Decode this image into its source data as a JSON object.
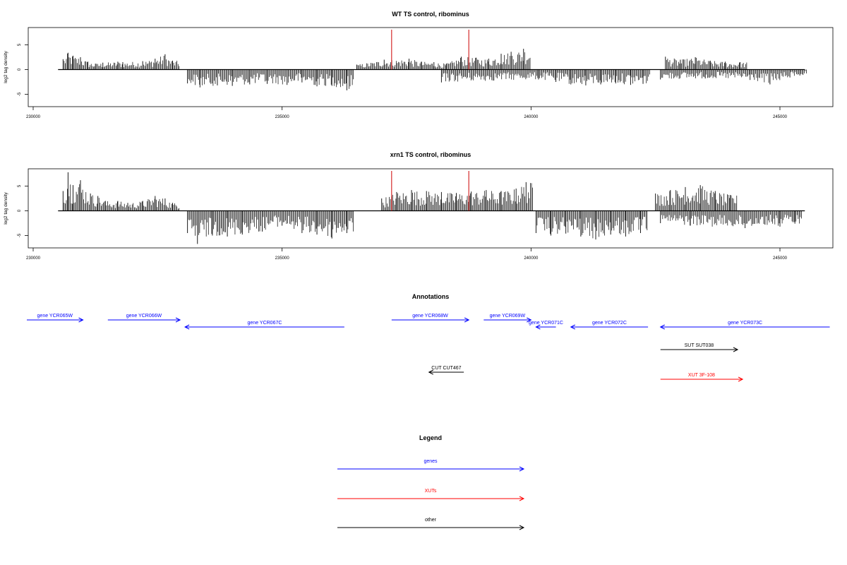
{
  "chart_data": [
    {
      "type": "bar",
      "title": "WT TS control, ribominus",
      "ylabel": "log2 tag density",
      "xlim": [
        230000,
        245800
      ],
      "ylim": [
        -7.5,
        8.5
      ],
      "x_ticks": [
        230000,
        235000,
        240000,
        245000
      ],
      "x_tick_labels": [
        "230000",
        "235000",
        "240000",
        "245000"
      ],
      "y_ticks": [
        -5,
        0,
        5
      ],
      "y_tick_labels": [
        "-5",
        "0",
        "5"
      ],
      "baseline": {
        "from": 230500,
        "to": 245500
      },
      "markers": [
        237200,
        238750
      ],
      "colors": {
        "data": "#000000",
        "markers": "#cc0000"
      },
      "series": [
        {
          "x": [
            230600,
            230700,
            230800,
            230950,
            231100,
            231250,
            231400,
            231700,
            231800,
            232200,
            232450,
            232650,
            232800
          ],
          "values": [
            2.1,
            3.4,
            2.8,
            2.5,
            1.6,
            1.2,
            1.4,
            1.6,
            1.5,
            1.7,
            2.2,
            3.1,
            1.8
          ]
        },
        {
          "x": [
            233100,
            233350,
            233700,
            234000,
            234350,
            234700,
            235100,
            235400,
            235700,
            236000,
            236300
          ],
          "values": [
            -2.8,
            -3.6,
            -3.2,
            -3.3,
            -3.0,
            -2.9,
            -3.1,
            -2.6,
            -3.4,
            -3.3,
            -4.2
          ]
        },
        {
          "x": [
            236500,
            237050,
            237550,
            237800,
            238050,
            238300,
            238600,
            238900,
            239150,
            239400,
            239600,
            239850
          ],
          "values": [
            1.0,
            2.0,
            2.2,
            1.6,
            1.5,
            1.2,
            2.6,
            2.4,
            2.2,
            3.2,
            3.6,
            4.2
          ]
        },
        {
          "x": [
            238200,
            240150,
            240500,
            240800,
            241100,
            241400,
            241700,
            242000,
            242250
          ],
          "values": [
            -2.6,
            -2.0,
            -2.5,
            -3.0,
            -3.2,
            -3.0,
            -2.8,
            -3.1,
            -2.9
          ]
        },
        {
          "x": [
            242700,
            243000,
            243300,
            243600,
            243900,
            244200
          ],
          "values": [
            2.6,
            2.0,
            2.5,
            1.8,
            1.6,
            1.5
          ]
        },
        {
          "x": [
            242600,
            243500,
            244400,
            244800,
            245200,
            245400
          ],
          "values": [
            -2.0,
            -1.8,
            -2.1,
            -3.0,
            -1.6,
            -1.2
          ]
        }
      ]
    },
    {
      "type": "bar",
      "title": "xrn1 TS control, ribominus",
      "ylabel": "log2 tag density",
      "xlim": [
        230000,
        245800
      ],
      "ylim": [
        -7.5,
        8.5
      ],
      "x_ticks": [
        230000,
        235000,
        240000,
        245000
      ],
      "x_tick_labels": [
        "230000",
        "235000",
        "240000",
        "245000"
      ],
      "y_ticks": [
        -5,
        0,
        5
      ],
      "y_tick_labels": [
        "-5",
        "0",
        "5"
      ],
      "baseline": {
        "from": 230500,
        "to": 245500
      },
      "markers": [
        237200,
        238750
      ],
      "colors": {
        "data": "#000000",
        "markers": "#cc0000"
      },
      "series": [
        {
          "x": [
            230600,
            230700,
            230800,
            230950,
            231150,
            231300,
            231450,
            231700,
            231900,
            232200,
            232450,
            232650,
            232800
          ],
          "values": [
            4.0,
            7.8,
            5.2,
            6.2,
            3.5,
            3.0,
            2.0,
            2.0,
            1.6,
            2.0,
            3.0,
            2.5,
            1.6
          ]
        },
        {
          "x": [
            233100,
            233300,
            233600,
            233900,
            234200,
            234600,
            235000,
            235400,
            235700,
            236000,
            236300
          ],
          "values": [
            -4.5,
            -6.7,
            -5.0,
            -5.2,
            -4.8,
            -4.2,
            -3.0,
            -4.5,
            -4.8,
            -5.6,
            -4.5
          ]
        },
        {
          "x": [
            237000,
            237300,
            237600,
            237900,
            238200,
            238500,
            238800,
            239100,
            239400,
            239700,
            239900
          ],
          "values": [
            2.5,
            3.8,
            4.2,
            4.0,
            3.8,
            3.6,
            3.9,
            4.2,
            4.0,
            4.5,
            5.8
          ]
        },
        {
          "x": [
            240100,
            240400,
            240700,
            241000,
            241300,
            241600,
            241900,
            242200
          ],
          "values": [
            -4.5,
            -5.0,
            -4.6,
            -5.2,
            -5.8,
            -4.8,
            -5.2,
            -4.5
          ]
        },
        {
          "x": [
            242500,
            242800,
            243100,
            243400,
            243700,
            244000
          ],
          "values": [
            3.5,
            4.2,
            4.8,
            5.2,
            4.0,
            3.2
          ]
        },
        {
          "x": [
            242600,
            243200,
            244300,
            244700,
            245000,
            245300
          ],
          "values": [
            -2.5,
            -3.0,
            -3.5,
            -2.8,
            -3.2,
            -2.6
          ]
        }
      ]
    }
  ],
  "annotations": {
    "title": "Annotations",
    "features": [
      {
        "label": "gene YCR065W",
        "type": "genes",
        "strand": "+",
        "start": 229700,
        "end": 231000,
        "row": 0
      },
      {
        "label": "gene YCR066W",
        "type": "genes",
        "strand": "+",
        "start": 231500,
        "end": 232950,
        "row": 0
      },
      {
        "label": "gene YCR067C",
        "type": "genes",
        "strand": "-",
        "start": 233050,
        "end": 236250,
        "row": 1
      },
      {
        "label": "gene YCR068W",
        "type": "genes",
        "strand": "+",
        "start": 237200,
        "end": 238750,
        "row": 0
      },
      {
        "label": "gene YCR069W",
        "type": "genes",
        "strand": "+",
        "start": 239050,
        "end": 240000,
        "row": 0
      },
      {
        "label": "gene YCR071C",
        "type": "genes",
        "strand": "-",
        "start": 240100,
        "end": 240500,
        "row": 1
      },
      {
        "label": "gene YCR072C",
        "type": "genes",
        "strand": "-",
        "start": 240800,
        "end": 242350,
        "row": 1
      },
      {
        "label": "gene YCR073C",
        "type": "genes",
        "strand": "-",
        "start": 242600,
        "end": 246000,
        "row": 1
      },
      {
        "label": "SUT SUT038",
        "type": "other",
        "strand": "+",
        "start": 242600,
        "end": 244150,
        "row": 2
      },
      {
        "label": "CUT CUT467",
        "type": "other",
        "strand": "-",
        "start": 237950,
        "end": 238650,
        "row": 3
      },
      {
        "label": "XUT 3F-108",
        "type": "XUTs",
        "strand": "+",
        "start": 242600,
        "end": 244250,
        "row": 4
      }
    ]
  },
  "legend": {
    "title": "Legend",
    "items": [
      {
        "label": "genes",
        "color": "#0000ff"
      },
      {
        "label": "XUTs",
        "color": "#ff0000"
      },
      {
        "label": "other",
        "color": "#000000"
      }
    ]
  },
  "colors": {
    "genes": "#0000ff",
    "XUTs": "#ff0000",
    "other": "#000000"
  }
}
